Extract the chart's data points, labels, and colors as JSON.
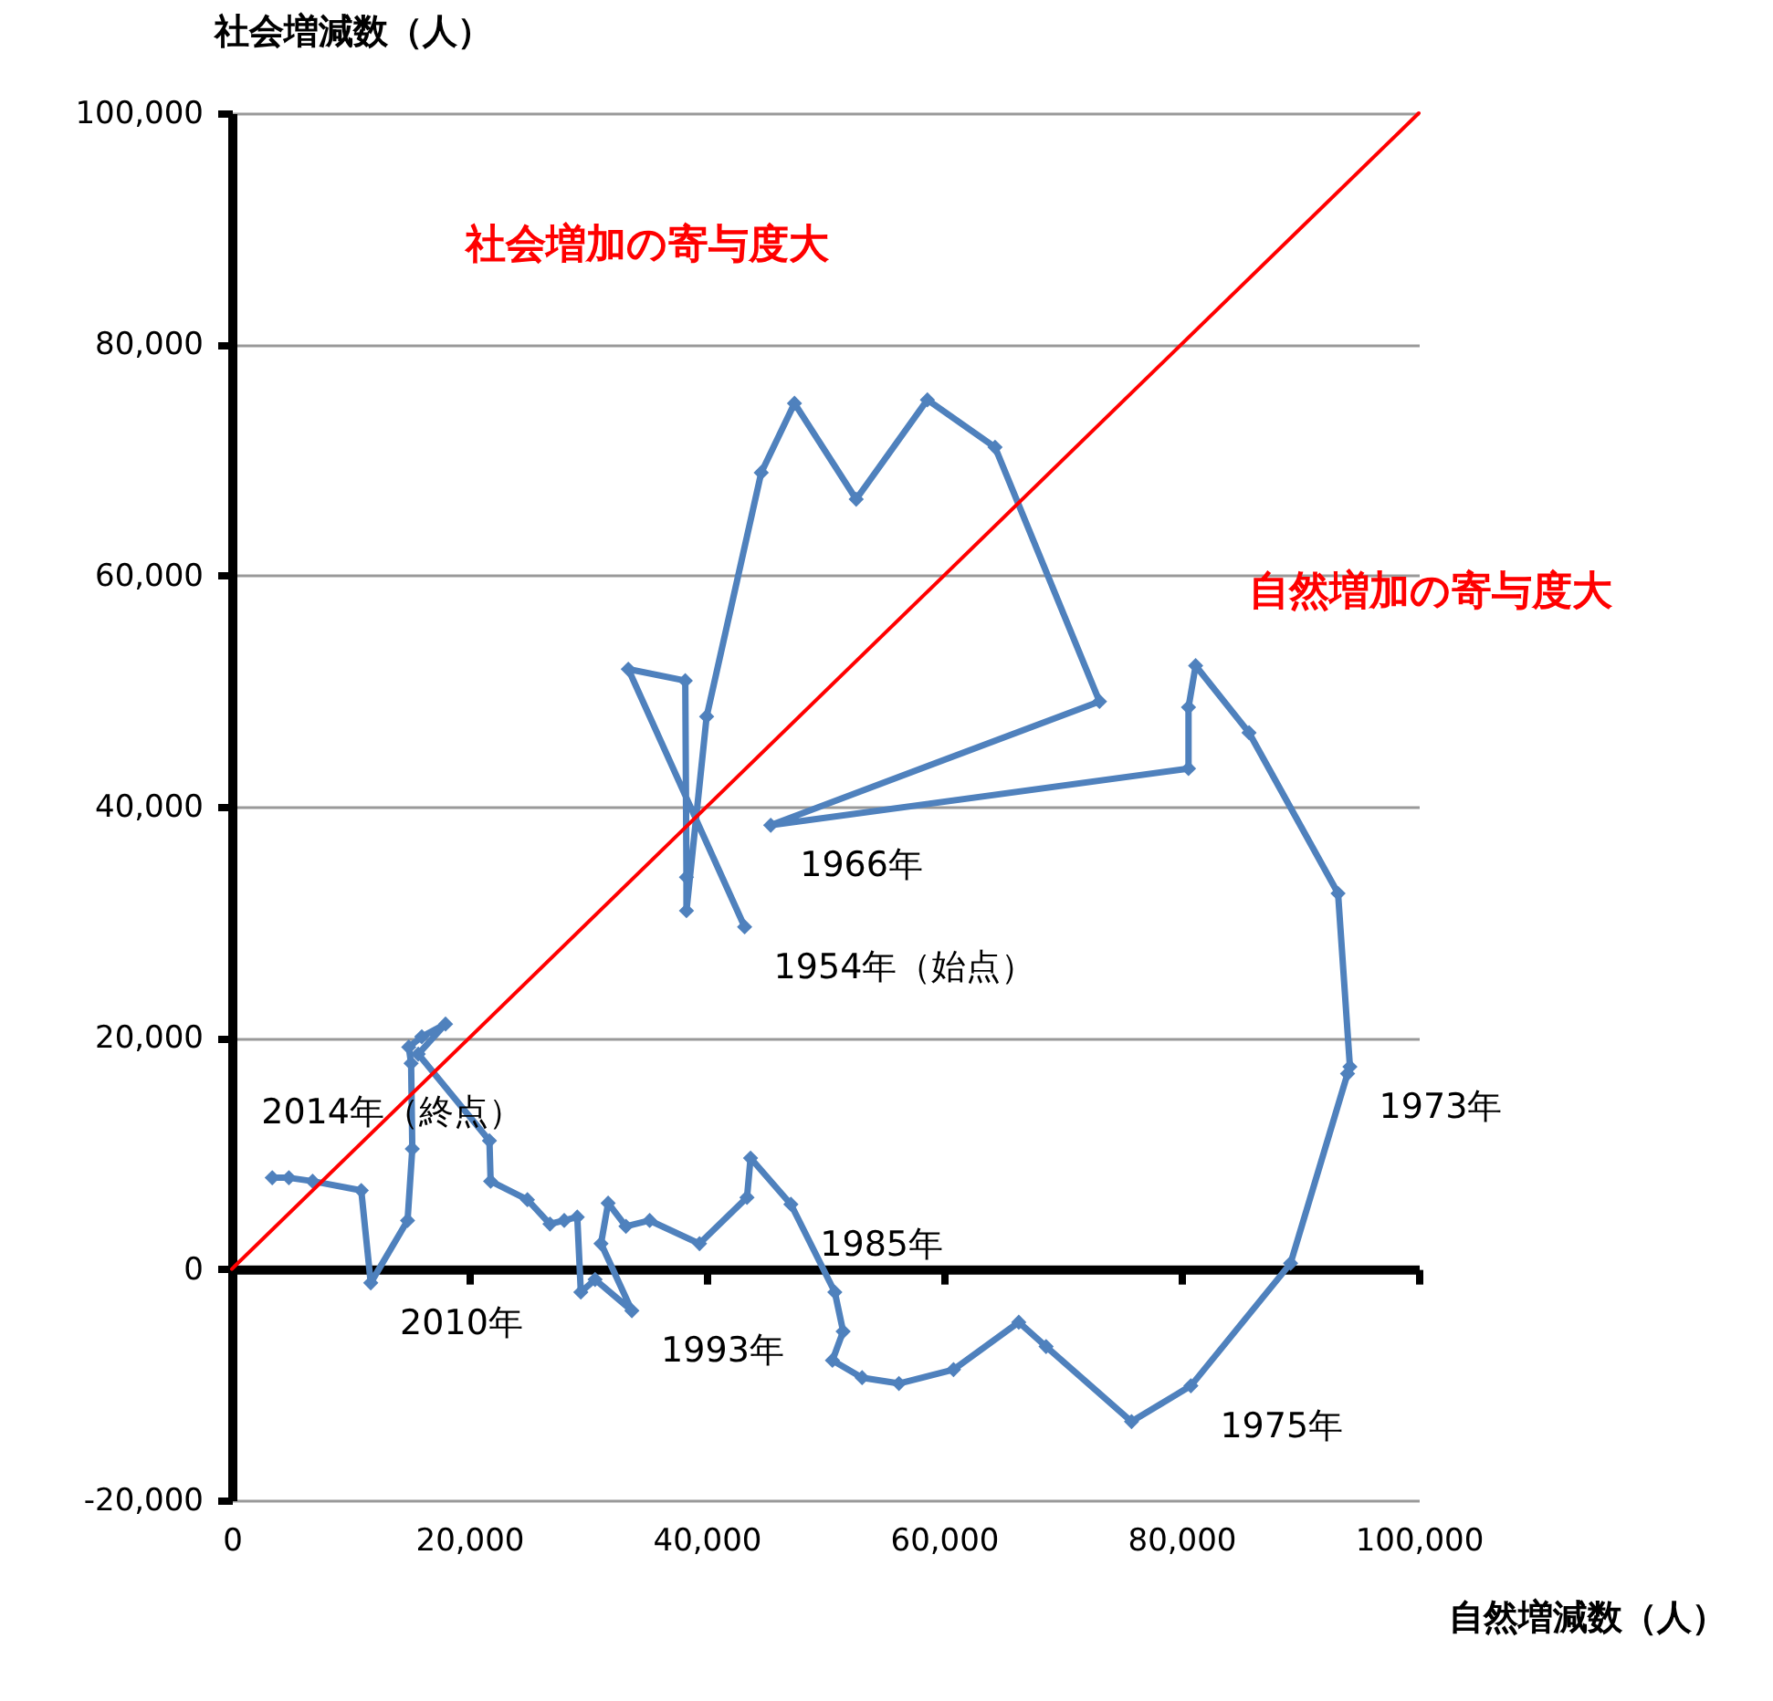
{
  "chart_data": {
    "type": "line",
    "xlabel": "自然増減数（人）",
    "ylabel": "社会増減数（人）",
    "xlim": [
      0,
      100000
    ],
    "xticks": [
      0,
      {
        "value": 20000,
        "label": "20,000"
      },
      {
        "value": 40000,
        "label": "40,000"
      },
      {
        "value": 60000,
        "label": "60,000"
      },
      {
        "value": 80000,
        "label": "80,000"
      },
      {
        "value": 100000,
        "label": "100,000"
      }
    ],
    "ylim": [
      -20000,
      100000
    ],
    "yticks": [
      {
        "value": -20000,
        "label": "-20,000"
      },
      0,
      {
        "value": 20000,
        "label": "20,000"
      },
      {
        "value": 40000,
        "label": "40,000"
      },
      {
        "value": 60000,
        "label": "60,000"
      },
      {
        "value": 80000,
        "label": "80,000"
      },
      {
        "value": 100000,
        "label": "100,000"
      }
    ],
    "grid": "y",
    "marker": "diamond",
    "series": [
      {
        "color": "#4f81bd",
        "x": [
          43200,
          33400,
          38200,
          38300,
          38300,
          40000,
          44600,
          47400,
          52600,
          58600,
          64300,
          73100,
          45400,
          80600,
          80600,
          81200,
          85700,
          93200,
          94200,
          94000,
          89200,
          80800,
          75800,
          68600,
          66300,
          60800,
          56200,
          53100,
          50600,
          51500,
          50800,
          47100,
          43700,
          43400,
          39400,
          35200,
          33200,
          31700,
          31100,
          33700,
          30600,
          29400,
          29100,
          28000,
          26800,
          24900,
          21800,
          21700,
          15700,
          18000,
          16000,
          14900,
          15100,
          15200,
          14800,
          11700,
          10900,
          6800,
          4800,
          3400
        ],
        "values": [
          29600,
          51900,
          50900,
          33900,
          31000,
          47800,
          68900,
          74900,
          66600,
          75200,
          71100,
          49100,
          38400,
          43300,
          48600,
          52200,
          46400,
          32500,
          17500,
          16900,
          500,
          -10100,
          -13200,
          -6700,
          -4600,
          -8700,
          -9900,
          -9400,
          -7900,
          -5400,
          -2000,
          5600,
          9600,
          6200,
          2200,
          4200,
          3700,
          5700,
          2200,
          -3600,
          -900,
          -2000,
          4500,
          4200,
          3900,
          6000,
          7600,
          11100,
          18600,
          21200,
          20100,
          19200,
          17800,
          10400,
          4200,
          -1200,
          6800,
          7600,
          7900,
          7900
        ]
      },
      {
        "type": "line",
        "marker": "none",
        "color": "#ff0000",
        "x": [
          0,
          100000
        ],
        "values": [
          0,
          100000
        ]
      }
    ],
    "annotations": [
      "社会増加の寄与度大",
      "自然増加の寄与度大",
      {
        "text": "1954年（始点）",
        "x": 43200,
        "y": 29600
      },
      {
        "text": "1966年",
        "x": 45400,
        "y": 38400
      },
      {
        "text": "1973年",
        "x": 94200,
        "y": 17500
      },
      {
        "text": "1975年",
        "x": 80800,
        "y": -10100
      },
      {
        "text": "1985年",
        "x": 47100,
        "y": 5600
      },
      {
        "text": "1993年",
        "x": 33700,
        "y": -3600
      },
      {
        "text": "2010年",
        "x": 11700,
        "y": -1200
      },
      {
        "text": "2014年（終点）",
        "x": 3400,
        "y": 7900
      }
    ]
  }
}
